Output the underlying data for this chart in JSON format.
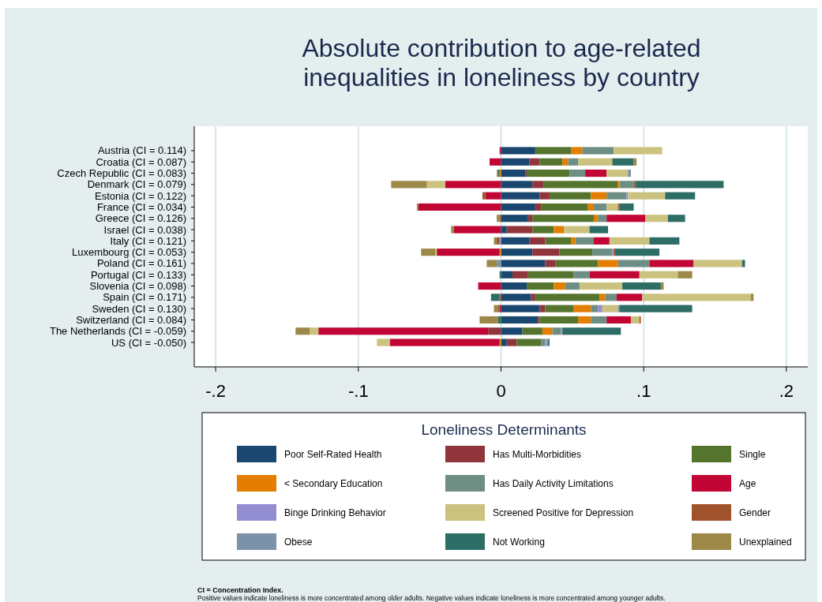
{
  "chart_data": {
    "type": "bar",
    "orientation": "horizontal",
    "stacked": true,
    "title": "Absolute contribution to age-related inequalities in loneliness by country",
    "categories": [
      "Austria (CI =  0.114)",
      "Croatia (CI =  0.087)",
      "Czech Republic (CI =  0.083)",
      "Denmark (CI =  0.079)",
      "Estonia (CI =  0.122)",
      "France (CI =  0.034)",
      "Greece (CI =  0.126)",
      "Israel (CI =  0.038)",
      "Italy (CI =  0.121)",
      "Luxembourg (CI =  0.053)",
      "Poland (CI =  0.161)",
      "Portugal (CI =  0.133)",
      "Slovenia (CI =  0.098)",
      "Spain (CI =  0.171)",
      "Sweden (CI =  0.130)",
      "Switzerland (CI =  0.084)",
      "The Netherlands (CI = -0.059)",
      "US (CI = -0.050)"
    ],
    "series": [
      {
        "name": "Poor Self-Rated Health",
        "color": "#1a476f",
        "values": [
          0.024,
          0.02,
          0.017,
          0.022,
          0.027,
          0.024,
          0.019,
          0.004,
          0.02,
          0.022,
          0.031,
          0.008,
          0.018,
          0.021,
          0.027,
          0.026,
          0.015,
          0.004
        ]
      },
      {
        "name": "Has Multi-Morbidities",
        "color": "#90353b",
        "values": [
          null,
          0.007,
          0.001,
          0.008,
          0.007,
          0.004,
          0.003,
          0.018,
          0.011,
          0.019,
          0.007,
          0.011,
          null,
          0.003,
          0.004,
          0.001,
          -0.009,
          0.007
        ]
      },
      {
        "name": "Single",
        "color": "#55752f",
        "values": [
          0.025,
          0.016,
          0.03,
          0.052,
          0.029,
          0.033,
          0.043,
          0.015,
          0.018,
          0.023,
          0.03,
          0.032,
          0.019,
          0.045,
          0.02,
          0.027,
          0.014,
          0.017
        ]
      },
      {
        "name": "< Secondary Education",
        "color": "#e37e00",
        "values": [
          0.008,
          0.004,
          -0.001,
          0.001,
          0.011,
          0.004,
          0.003,
          0.007,
          0.003,
          -0.001,
          0.014,
          null,
          0.008,
          0.004,
          0.012,
          0.009,
          0.007,
          -0.001
        ]
      },
      {
        "name": "Has Daily Activity Limitations",
        "color": "#6e8e84",
        "values": [
          0.022,
          0.007,
          0.011,
          0.01,
          0.014,
          0.009,
          0.006,
          null,
          0.013,
          0.014,
          0.022,
          0.011,
          0.01,
          0.008,
          0.005,
          0.011,
          0.006,
          0.003
        ]
      },
      {
        "name": "Age",
        "color": "#c10534",
        "values": [
          -0.001,
          -0.008,
          0.015,
          -0.039,
          -0.011,
          -0.058,
          0.027,
          -0.033,
          0.011,
          -0.044,
          0.031,
          0.035,
          -0.016,
          0.018,
          -0.001,
          0.017,
          -0.119,
          -0.077
        ]
      },
      {
        "name": "Binge Drinking Behavior",
        "color": "#938dd2",
        "values": [
          null,
          null,
          null,
          null,
          0.001,
          null,
          null,
          null,
          -0.001,
          0.001,
          null,
          null,
          null,
          null,
          0.003,
          null,
          0.001,
          0.001
        ]
      },
      {
        "name": "Screened Positive for Depression",
        "color": "#cac27e",
        "values": [
          0.034,
          0.024,
          0.015,
          -0.013,
          0.026,
          0.008,
          0.016,
          0.018,
          0.028,
          -0.001,
          0.034,
          0.027,
          0.03,
          0.076,
          0.011,
          0.006,
          -0.006,
          -0.009
        ]
      },
      {
        "name": "Gender",
        "color": "#a0522d",
        "values": [
          null,
          null,
          null,
          0.001,
          -0.002,
          0.001,
          -0.001,
          null,
          -0.002,
          0.001,
          null,
          null,
          null,
          -0.001,
          -0.001,
          0.001,
          null,
          null
        ]
      },
      {
        "name": "Obese",
        "color": "#7b92a8",
        "values": [
          null,
          null,
          0.002,
          null,
          null,
          null,
          null,
          null,
          null,
          null,
          -0.003,
          null,
          null,
          null,
          0.001,
          null,
          null,
          0.001
        ]
      },
      {
        "name": "Not Working",
        "color": "#2d6d66",
        "values": [
          null,
          0.015,
          -0.001,
          0.062,
          0.021,
          0.01,
          0.012,
          0.013,
          0.021,
          0.031,
          0.002,
          -0.001,
          0.027,
          -0.006,
          0.051,
          -0.002,
          0.041,
          0.001
        ]
      },
      {
        "name": "Unexplained",
        "color": "#9c8847",
        "values": [
          null,
          0.002,
          -0.001,
          -0.025,
          null,
          -0.001,
          -0.002,
          -0.002,
          -0.002,
          -0.01,
          -0.007,
          0.01,
          0.002,
          0.002,
          -0.003,
          -0.013,
          -0.01,
          null
        ]
      }
    ],
    "xlim": [
      -0.215,
      0.215
    ],
    "xticks": [
      {
        "value": -0.2,
        "label": "-.2"
      },
      {
        "value": -0.1,
        "label": "-.1"
      },
      0,
      {
        "value": 0.1,
        "label": ".1"
      },
      {
        "value": 0.2,
        "label": ".2"
      }
    ],
    "grid": "x",
    "legend": "bottom",
    "legend_title": "Loneliness Determinants",
    "annotations": [
      "CI = Concentration Index.",
      "Positive values indicate loneliness is more concentrated among older adults. Negative values indicate loneliness is more concentrated among younger adults."
    ]
  }
}
